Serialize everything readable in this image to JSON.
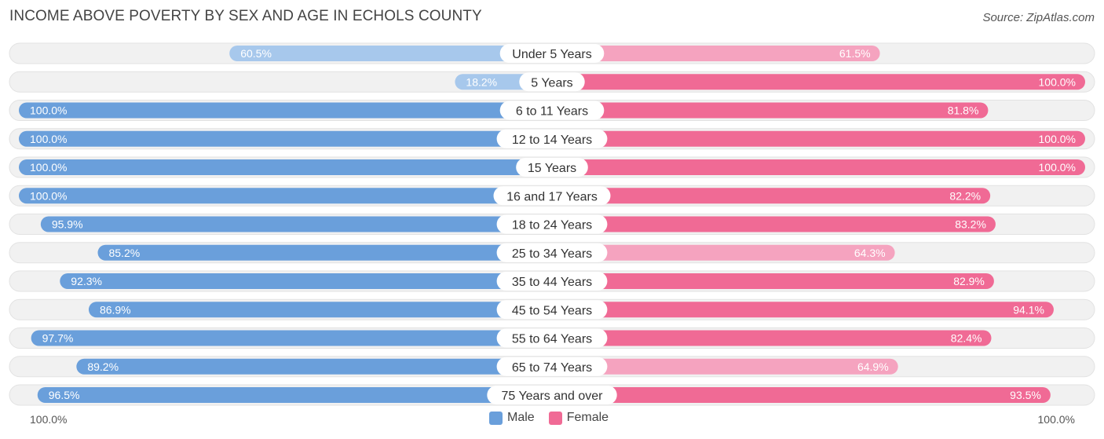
{
  "title": "INCOME ABOVE POVERTY BY SEX AND AGE IN ECHOLS COUNTY",
  "source": "Source: ZipAtlas.com",
  "colors": {
    "male_strong": "#6a9fdb",
    "male_light": "#a7c8ec",
    "female_strong": "#f06a95",
    "female_light": "#f5a3bf",
    "track": "#f1f1f1"
  },
  "legend": {
    "male": "Male",
    "female": "Female"
  },
  "axis": {
    "left_label": "100.0%",
    "right_label": "100.0%"
  },
  "chart_data": {
    "type": "bar",
    "orientation": "horizontal-diverging",
    "title": "INCOME ABOVE POVERTY BY SEX AND AGE IN ECHOLS COUNTY",
    "xlim": [
      0,
      100
    ],
    "categories": [
      "Under 5 Years",
      "5 Years",
      "6 to 11 Years",
      "12 to 14 Years",
      "15 Years",
      "16 and 17 Years",
      "18 to 24 Years",
      "25 to 34 Years",
      "35 to 44 Years",
      "45 to 54 Years",
      "55 to 64 Years",
      "65 to 74 Years",
      "75 Years and over"
    ],
    "series": [
      {
        "name": "Male",
        "values": [
          60.5,
          18.2,
          100.0,
          100.0,
          100.0,
          100.0,
          95.9,
          85.2,
          92.3,
          86.9,
          97.7,
          89.2,
          96.5
        ],
        "labels": [
          "60.5%",
          "18.2%",
          "100.0%",
          "100.0%",
          "100.0%",
          "100.0%",
          "95.9%",
          "85.2%",
          "92.3%",
          "86.9%",
          "97.7%",
          "89.2%",
          "96.5%"
        ]
      },
      {
        "name": "Female",
        "values": [
          61.5,
          100.0,
          81.8,
          100.0,
          100.0,
          82.2,
          83.2,
          64.3,
          82.9,
          94.1,
          82.4,
          64.9,
          93.5
        ],
        "labels": [
          "61.5%",
          "100.0%",
          "81.8%",
          "100.0%",
          "100.0%",
          "82.2%",
          "83.2%",
          "64.3%",
          "82.9%",
          "94.1%",
          "82.4%",
          "64.9%",
          "93.5%"
        ]
      }
    ]
  }
}
